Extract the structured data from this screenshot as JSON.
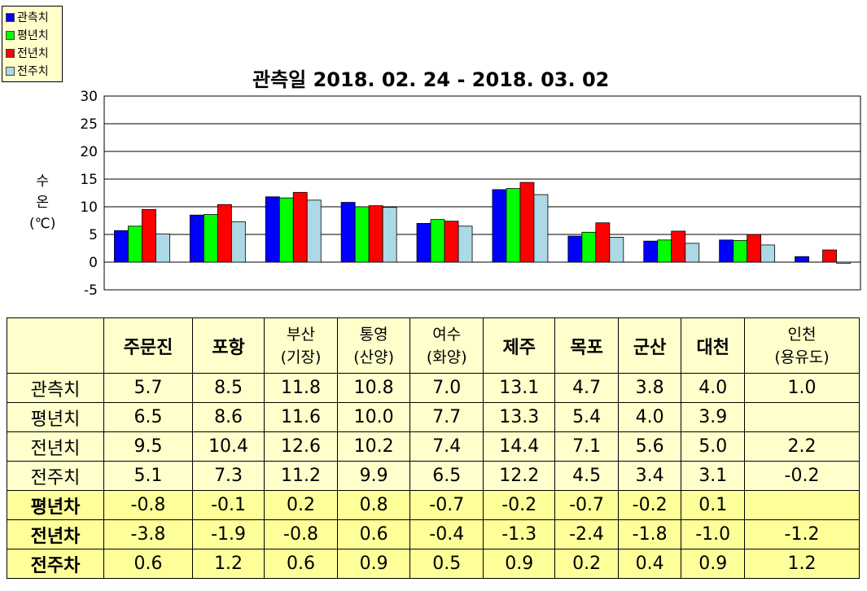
{
  "chart_data": {
    "type": "bar",
    "title": "관측일 2018. 02. 24 - 2018. 03. 02",
    "ylabel": "수\n온\n(℃)",
    "ylim": [
      -5,
      30
    ],
    "yticks": [
      -5,
      0,
      5,
      10,
      15,
      20,
      25,
      30
    ],
    "grid": true,
    "legend_position": "top-left",
    "categories": [
      "주문진",
      "포항",
      "부산(기장)",
      "통영(산양)",
      "여수(화양)",
      "제주",
      "목포",
      "군산",
      "대천",
      "인천(용유도)"
    ],
    "series": [
      {
        "name": "관측치",
        "color": "#0000FF",
        "values": [
          5.7,
          8.5,
          11.8,
          10.8,
          7.0,
          13.1,
          4.7,
          3.8,
          4.0,
          1.0
        ]
      },
      {
        "name": "평년치",
        "color": "#00FF00",
        "values": [
          6.5,
          8.6,
          11.6,
          10.0,
          7.7,
          13.3,
          5.4,
          4.0,
          3.9,
          null
        ]
      },
      {
        "name": "전년치",
        "color": "#FF0000",
        "values": [
          9.5,
          10.4,
          12.6,
          10.2,
          7.4,
          14.4,
          7.1,
          5.6,
          5.0,
          2.2
        ]
      },
      {
        "name": "전주치",
        "color": "#ADD8E6",
        "values": [
          5.1,
          7.3,
          11.2,
          9.9,
          6.5,
          12.2,
          4.5,
          3.4,
          3.1,
          -0.2
        ]
      }
    ]
  },
  "table": {
    "headers": [
      {
        "main": "주문진"
      },
      {
        "main": "포항"
      },
      {
        "l1": "부산",
        "l2": "(기장)"
      },
      {
        "l1": "통영",
        "l2": "(산양)"
      },
      {
        "l1": "여수",
        "l2": "(화양)"
      },
      {
        "main": "제주"
      },
      {
        "main": "목포"
      },
      {
        "main": "군산"
      },
      {
        "main": "대천"
      },
      {
        "l1": "인천",
        "l2": "(용유도)"
      }
    ],
    "rows": [
      {
        "label": "관측치",
        "diff": false,
        "values": [
          "5.7",
          "8.5",
          "11.8",
          "10.8",
          "7.0",
          "13.1",
          "4.7",
          "3.8",
          "4.0",
          "1.0"
        ]
      },
      {
        "label": "평년치",
        "diff": false,
        "values": [
          "6.5",
          "8.6",
          "11.6",
          "10.0",
          "7.7",
          "13.3",
          "5.4",
          "4.0",
          "3.9",
          ""
        ]
      },
      {
        "label": "전년치",
        "diff": false,
        "values": [
          "9.5",
          "10.4",
          "12.6",
          "10.2",
          "7.4",
          "14.4",
          "7.1",
          "5.6",
          "5.0",
          "2.2"
        ]
      },
      {
        "label": "전주치",
        "diff": false,
        "values": [
          "5.1",
          "7.3",
          "11.2",
          "9.9",
          "6.5",
          "12.2",
          "4.5",
          "3.4",
          "3.1",
          "-0.2"
        ]
      },
      {
        "label": "평년차",
        "diff": true,
        "values": [
          "-0.8",
          "-0.1",
          "0.2",
          "0.8",
          "-0.7",
          "-0.2",
          "-0.7",
          "-0.2",
          "0.1",
          ""
        ]
      },
      {
        "label": "전년차",
        "diff": true,
        "values": [
          "-3.8",
          "-1.9",
          "-0.8",
          "0.6",
          "-0.4",
          "-1.3",
          "-2.4",
          "-1.8",
          "-1.0",
          "-1.2"
        ]
      },
      {
        "label": "전주차",
        "diff": true,
        "values": [
          "0.6",
          "1.2",
          "0.6",
          "0.9",
          "0.5",
          "0.9",
          "0.2",
          "0.4",
          "0.9",
          "1.2"
        ]
      }
    ]
  }
}
